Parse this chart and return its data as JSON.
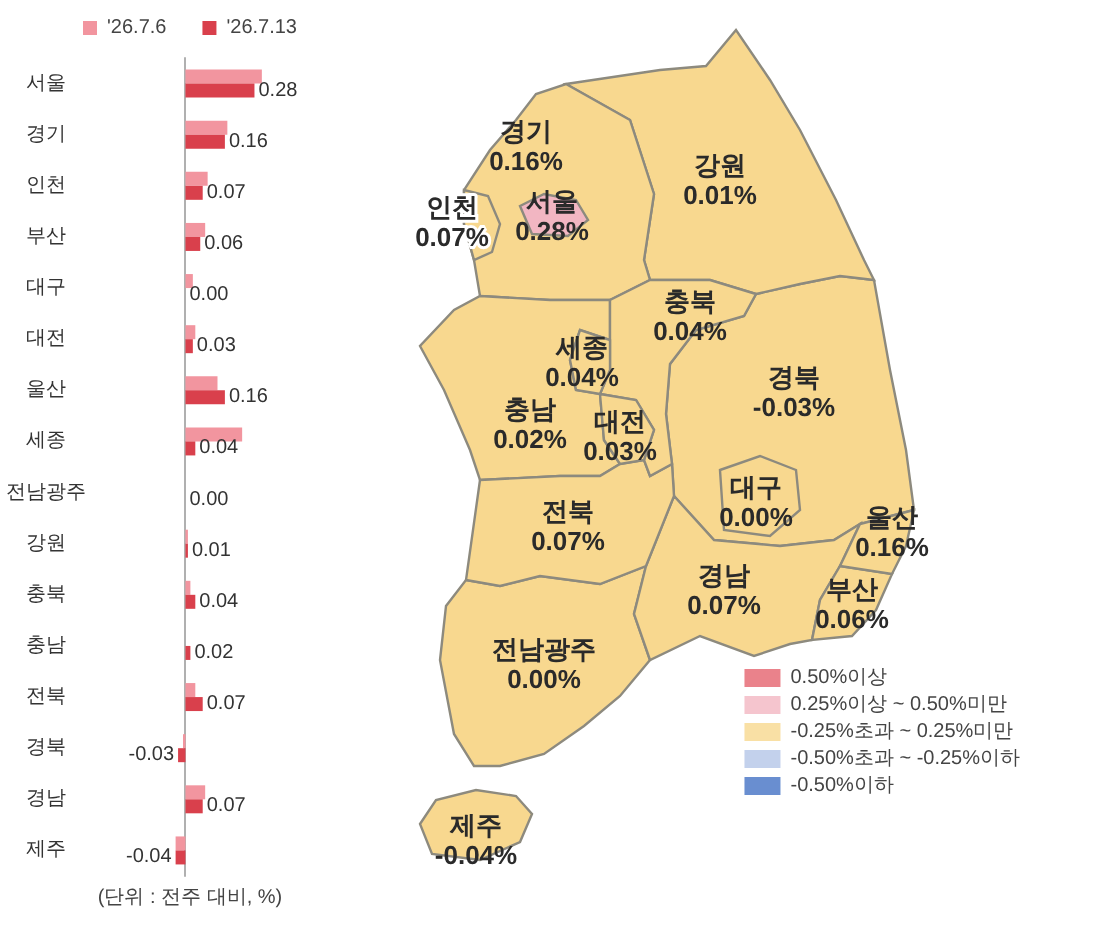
{
  "chart_data": [
    {
      "type": "bar",
      "orientation": "horizontal",
      "legend": "top",
      "tick_labels": "y",
      "categories": [
        "서울",
        "경기",
        "인천",
        "부산",
        "대구",
        "대전",
        "울산",
        "세종",
        "전남광주",
        "강원",
        "충북",
        "충남",
        "전북",
        "경북",
        "경남",
        "제주"
      ],
      "series": [
        {
          "name": "'26.7.6",
          "color": "#f2959f",
          "values": [
            0.31,
            0.17,
            0.09,
            0.08,
            0.03,
            0.04,
            0.13,
            0.23,
            0,
            0.01,
            0.02,
            0,
            0.04,
            -0.01,
            0.08,
            -0.04
          ]
        },
        {
          "name": "'26.7.13",
          "color": "#d9404c",
          "values": [
            0.28,
            0.16,
            0.07,
            0.06,
            0,
            0.03,
            0.16,
            0.04,
            0,
            0.01,
            0.04,
            0.02,
            0.07,
            -0.03,
            0.07,
            -0.04
          ],
          "value_labels": [
            "0.28",
            "0.16",
            "0.07",
            "0.06",
            "0.00",
            "0.03",
            "0.16",
            "0.04",
            "0.00",
            "0.01",
            "0.04",
            "0.02",
            "0.07",
            "-0.03",
            "0.07",
            "-0.04"
          ]
        }
      ],
      "annotations": [
        "(단위 : 전주 대비, %)"
      ]
    },
    {
      "type": "other",
      "legend": "bottom right",
      "categories": [
        "서울",
        "경기",
        "인천",
        "부산",
        "대구",
        "대전",
        "울산",
        "세종",
        "전남광주",
        "강원",
        "충북",
        "충남",
        "전북",
        "경북",
        "경남",
        "제주"
      ],
      "series": [
        {
          "name": "0.50%이상",
          "color": "#e5636e",
          "values": [
            null,
            null,
            null,
            null,
            null,
            null,
            null,
            null,
            null,
            null,
            null,
            null,
            null,
            null,
            null,
            null
          ]
        },
        {
          "name": "0.25%이상 ~ 0.50%미만",
          "color": "#f2b6c2",
          "values": [
            0.28,
            null,
            null,
            null,
            null,
            null,
            null,
            null,
            null,
            null,
            null,
            null,
            null,
            null,
            null,
            null
          ],
          "value_labels": [
            "0.28%",
            null,
            null,
            null,
            null,
            null,
            null,
            null,
            null,
            null,
            null,
            null,
            null,
            null,
            null,
            null
          ]
        },
        {
          "name": "-0.25%초과 ~ 0.25%미만",
          "color": "#f8d88f",
          "values": [
            null,
            0.16,
            0.07,
            0.06,
            0,
            0.03,
            0.16,
            0.04,
            0,
            0.01,
            0.04,
            0.02,
            0.07,
            -0.03,
            0.07,
            -0.04
          ],
          "value_labels": [
            null,
            "0.16%",
            "0.07%",
            "0.06%",
            "0.00%",
            "0.03%",
            "0.16%",
            "0.04%",
            "0.00%",
            "0.01%",
            "0.04%",
            "0.02%",
            "0.07%",
            "-0.03%",
            "0.07%",
            "-0.04%"
          ]
        },
        {
          "name": "-0.50%초과 ~ -0.25%이하",
          "color": "#b4c6e7",
          "values": [
            null,
            null,
            null,
            null,
            null,
            null,
            null,
            null,
            null,
            null,
            null,
            null,
            null,
            null,
            null,
            null
          ]
        },
        {
          "name": "-0.50%이하",
          "color": "#4472c4",
          "values": [
            null,
            null,
            null,
            null,
            null,
            null,
            null,
            null,
            null,
            null,
            null,
            null,
            null,
            null,
            null,
            null
          ]
        }
      ]
    }
  ]
}
